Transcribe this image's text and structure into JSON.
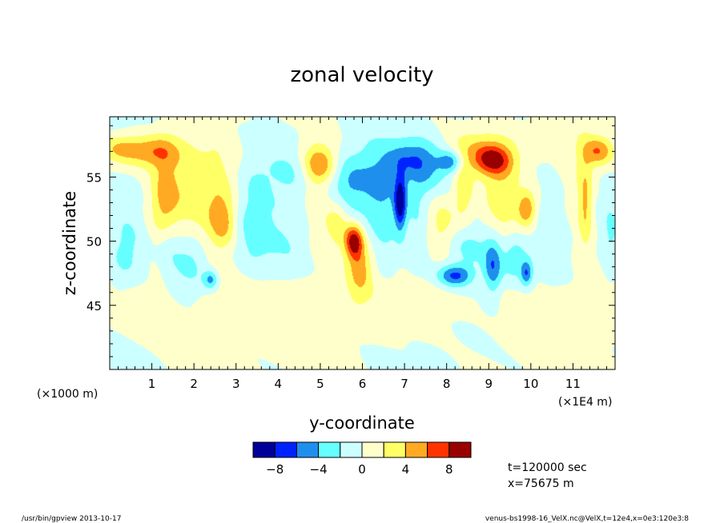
{
  "chart_data": {
    "type": "heatmap",
    "title": "zonal velocity",
    "xlabel": "y-coordinate",
    "ylabel": "z-coordinate",
    "x_unit_prefix": "(×1000 m)",
    "x_unit_suffix": "(×1E4 m)",
    "xlim": [
      0,
      12
    ],
    "ylim": [
      40,
      59.7
    ],
    "xticks": [
      1,
      2,
      3,
      4,
      5,
      6,
      7,
      8,
      9,
      10,
      11
    ],
    "xtick_labels": [
      "1",
      "2",
      "3",
      "4",
      "5",
      "6",
      "7",
      "8",
      "9",
      "10",
      "11"
    ],
    "yticks": [
      45,
      50,
      55
    ],
    "ytick_labels": [
      "45",
      "50",
      "55"
    ],
    "levels": [
      -10,
      -8,
      -6,
      -4,
      -2,
      0,
      2,
      4,
      6,
      8,
      10
    ],
    "colorbar_labels": [
      {
        "value": -8,
        "label": "−8"
      },
      {
        "value": -4,
        "label": "−4"
      },
      {
        "value": 0,
        "label": "0"
      },
      {
        "value": 4,
        "label": "4"
      },
      {
        "value": 8,
        "label": "8"
      }
    ],
    "colors": [
      "#000099",
      "#0022ff",
      "#1f8fee",
      "#66ffff",
      "#ccffff",
      "#ffffcc",
      "#ffff66",
      "#ffaa22",
      "#ff3300",
      "#990000"
    ],
    "background_color": "#ccffff",
    "features": [
      {
        "x": 0.9,
        "z": 57.0,
        "amp": 5.5,
        "sx": 0.5,
        "sz": 0.9
      },
      {
        "x": 0.2,
        "z": 57.3,
        "amp": 3.0,
        "sx": 0.3,
        "sz": 0.7
      },
      {
        "x": 1.3,
        "z": 53.5,
        "amp": 3.5,
        "sx": 0.22,
        "sz": 2.6
      },
      {
        "x": 1.7,
        "z": 54.0,
        "amp": 2.5,
        "sx": 0.4,
        "sz": 3.0
      },
      {
        "x": 2.5,
        "z": 53.0,
        "amp": 3.2,
        "sx": 0.35,
        "sz": 3.0
      },
      {
        "x": 2.7,
        "z": 51.5,
        "amp": 3.5,
        "sx": 0.2,
        "sz": 1.3
      },
      {
        "x": 0.5,
        "z": 51.5,
        "amp": -1.5,
        "sx": 0.3,
        "sz": 3.0
      },
      {
        "x": 0.3,
        "z": 48.5,
        "amp": -2.0,
        "sx": 0.3,
        "sz": 1.8
      },
      {
        "x": 1.9,
        "z": 48.5,
        "amp": -3.0,
        "sx": 0.35,
        "sz": 1.8
      },
      {
        "x": 2.4,
        "z": 47.0,
        "amp": -4.5,
        "sx": 0.12,
        "sz": 0.5
      },
      {
        "x": 1.4,
        "z": 50.0,
        "amp": -2.0,
        "sx": 0.2,
        "sz": 1.5
      },
      {
        "x": 3.4,
        "z": 52.0,
        "amp": -2.5,
        "sx": 0.3,
        "sz": 3.5
      },
      {
        "x": 4.3,
        "z": 51.0,
        "amp": -1.8,
        "sx": 0.5,
        "sz": 3.5
      },
      {
        "x": 4.2,
        "z": 55.5,
        "amp": -1.5,
        "sx": 0.6,
        "sz": 1.2
      },
      {
        "x": 5.0,
        "z": 56.0,
        "amp": 5.5,
        "sx": 0.3,
        "sz": 1.0
      },
      {
        "x": 4.9,
        "z": 53.5,
        "amp": 2.5,
        "sx": 0.25,
        "sz": 3.0
      },
      {
        "x": 5.4,
        "z": 51.5,
        "amp": 3.3,
        "sx": 0.2,
        "sz": 1.5
      },
      {
        "x": 5.8,
        "z": 50.0,
        "amp": 8.5,
        "sx": 0.15,
        "sz": 0.9
      },
      {
        "x": 5.95,
        "z": 48.0,
        "amp": 4.5,
        "sx": 0.2,
        "sz": 1.5
      },
      {
        "x": 5.6,
        "z": 54.5,
        "amp": -2.5,
        "sx": 0.3,
        "sz": 1.5
      },
      {
        "x": 6.3,
        "z": 55.0,
        "amp": -3.5,
        "sx": 0.5,
        "sz": 2.0
      },
      {
        "x": 6.5,
        "z": 51.5,
        "amp": -2.2,
        "sx": 0.3,
        "sz": 3.0
      },
      {
        "x": 6.9,
        "z": 53.0,
        "amp": -8.5,
        "sx": 0.1,
        "sz": 1.5
      },
      {
        "x": 7.2,
        "z": 56.5,
        "amp": -3.5,
        "sx": 0.4,
        "sz": 1.0
      },
      {
        "x": 7.6,
        "z": 55.5,
        "amp": -3.0,
        "sx": 0.4,
        "sz": 1.5
      },
      {
        "x": 7.3,
        "z": 51.5,
        "amp": -2.2,
        "sx": 0.2,
        "sz": 2.5
      },
      {
        "x": 8.1,
        "z": 56.2,
        "amp": -5.0,
        "sx": 0.2,
        "sz": 0.6
      },
      {
        "x": 7.9,
        "z": 51.0,
        "amp": 2.5,
        "sx": 0.25,
        "sz": 2.0
      },
      {
        "x": 8.8,
        "z": 57.0,
        "amp": 3.5,
        "sx": 0.6,
        "sz": 1.2
      },
      {
        "x": 9.1,
        "z": 56.3,
        "amp": 6.0,
        "sx": 0.3,
        "sz": 0.8
      },
      {
        "x": 8.4,
        "z": 54.0,
        "amp": 3.5,
        "sx": 0.15,
        "sz": 1.5
      },
      {
        "x": 9.3,
        "z": 53.0,
        "amp": 3.0,
        "sx": 0.3,
        "sz": 2.5
      },
      {
        "x": 9.9,
        "z": 52.5,
        "amp": 5.5,
        "sx": 0.15,
        "sz": 0.9
      },
      {
        "x": 8.2,
        "z": 47.3,
        "amp": -6.5,
        "sx": 0.3,
        "sz": 0.6
      },
      {
        "x": 8.5,
        "z": 49.5,
        "amp": -2.8,
        "sx": 0.5,
        "sz": 1.2
      },
      {
        "x": 9.1,
        "z": 48.0,
        "amp": -5.5,
        "sx": 0.15,
        "sz": 1.5
      },
      {
        "x": 9.6,
        "z": 48.5,
        "amp": -3.0,
        "sx": 0.2,
        "sz": 1.2
      },
      {
        "x": 9.9,
        "z": 47.5,
        "amp": -5.5,
        "sx": 0.1,
        "sz": 0.7
      },
      {
        "x": 11.6,
        "z": 57.0,
        "amp": 5.5,
        "sx": 0.25,
        "sz": 0.8
      },
      {
        "x": 11.3,
        "z": 53.0,
        "amp": 4.0,
        "sx": 0.12,
        "sz": 2.5
      },
      {
        "x": 11.0,
        "z": 54.0,
        "amp": 1.8,
        "sx": 0.3,
        "sz": 3.5
      },
      {
        "x": 10.6,
        "z": 51.0,
        "amp": -2.0,
        "sx": 0.3,
        "sz": 3.0
      },
      {
        "x": 11.9,
        "z": 50.0,
        "amp": -2.0,
        "sx": 0.15,
        "sz": 2.5
      },
      {
        "x": 3.5,
        "z": 46.0,
        "amp": 1.5,
        "sx": 0.8,
        "sz": 1.5
      },
      {
        "x": 5.5,
        "z": 44.5,
        "amp": 1.2,
        "sx": 1.0,
        "sz": 2.0
      },
      {
        "x": 7.5,
        "z": 45.0,
        "amp": 1.2,
        "sx": 0.8,
        "sz": 1.5
      },
      {
        "x": 10.5,
        "z": 44.5,
        "amp": 1.3,
        "sx": 1.0,
        "sz": 2.0
      },
      {
        "x": 1.0,
        "z": 45.0,
        "amp": 1.1,
        "sx": 0.8,
        "sz": 2.0
      },
      {
        "x": 2.5,
        "z": 43.0,
        "amp": 1.1,
        "sx": 0.6,
        "sz": 1.5
      }
    ]
  },
  "annotations": {
    "time": "t=120000 sec",
    "position": "x=75675 m",
    "footer_left": "/usr/bin/gpview  2013-10-17",
    "footer_right": "venus-bs1998-16_VelX.nc@VelX,t=12e4,x=0e3:120e3:8"
  }
}
